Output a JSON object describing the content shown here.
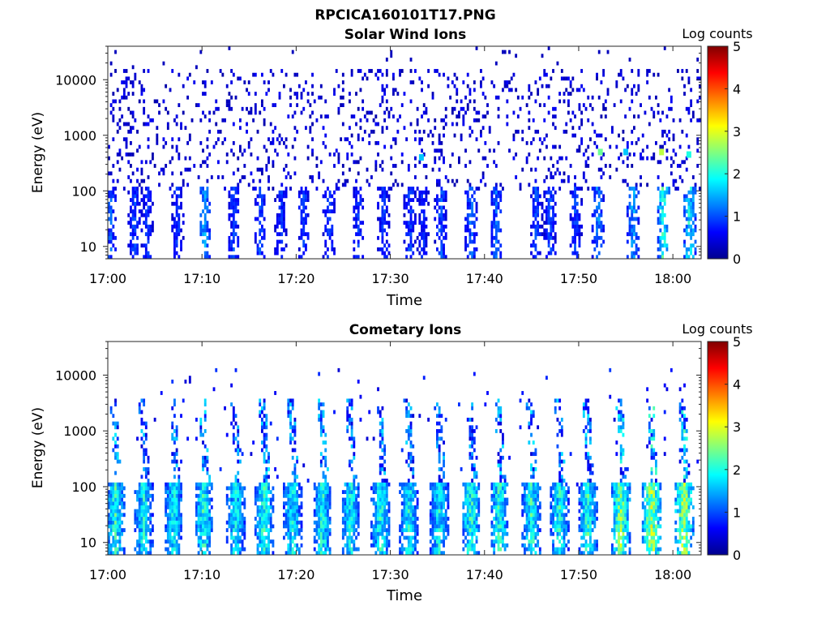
{
  "figure": {
    "title": "RPCICA160101T17.PNG"
  },
  "chart_data": [
    {
      "type": "heatmap",
      "title": "Solar Wind Ions",
      "xlabel": "Time",
      "ylabel": "Energy (eV)",
      "x_scale": "time",
      "xlim": [
        "17:00",
        "18:03"
      ],
      "xticks": [
        "17:00",
        "17:10",
        "17:20",
        "17:30",
        "17:40",
        "17:50",
        "18:00"
      ],
      "y_scale": "log",
      "ylim": [
        6,
        40000
      ],
      "yticks": [
        10,
        100,
        1000,
        10000
      ],
      "ytick_labels": [
        "10",
        "100",
        "1000",
        "10000"
      ],
      "colorbar": {
        "label": "Log counts",
        "range": [
          0,
          5
        ],
        "ticks": [
          "0",
          "1",
          "2",
          "3",
          "4",
          "5"
        ],
        "colormap": "jet"
      },
      "sweeps_min": [
        0.3,
        2.8,
        4.2,
        7.4,
        10.3,
        13.4,
        16.2,
        18.4,
        20.8,
        23.5,
        26.6,
        29.3,
        32.1,
        33.5,
        35.4,
        38.6,
        41.3,
        45.5,
        47.0,
        49.7,
        52.1,
        55.8,
        59.0,
        61.8
      ],
      "sweep_peak_log_counts": [
        1.3,
        1.2,
        1.1,
        1.1,
        1.8,
        1.2,
        1.2,
        1.1,
        1.2,
        1.2,
        1.1,
        1.2,
        1.2,
        1.0,
        1.3,
        1.4,
        1.4,
        1.2,
        1.2,
        1.2,
        1.6,
        1.8,
        2.6,
        2.4
      ],
      "background_log_counts": [
        0.2,
        0.6
      ],
      "hotspots": [
        {
          "time_min": 33.3,
          "energy_ev": 400,
          "log_counts": 1.6
        },
        {
          "time_min": 52.3,
          "energy_ev": 500,
          "log_counts": 2.4
        },
        {
          "time_min": 55.0,
          "energy_ev": 500,
          "log_counts": 1.6
        },
        {
          "time_min": 58.8,
          "energy_ev": 500,
          "log_counts": 2.8
        },
        {
          "time_min": 61.7,
          "energy_ev": 450,
          "log_counts": 2.0
        }
      ]
    },
    {
      "type": "heatmap",
      "title": "Cometary Ions",
      "xlabel": "Time",
      "ylabel": "Energy (eV)",
      "x_scale": "time",
      "xlim": [
        "17:00",
        "18:03"
      ],
      "xticks": [
        "17:00",
        "17:10",
        "17:20",
        "17:30",
        "17:40",
        "17:50",
        "18:00"
      ],
      "y_scale": "log",
      "ylim": [
        6,
        40000
      ],
      "yticks": [
        10,
        100,
        1000,
        10000
      ],
      "ytick_labels": [
        "10",
        "100",
        "1000",
        "10000"
      ],
      "colorbar": {
        "label": "Log counts",
        "range": [
          0,
          5
        ],
        "ticks": [
          "0",
          "1",
          "2",
          "3",
          "4",
          "5"
        ],
        "colormap": "jet"
      },
      "sweeps_min": [
        0.8,
        3.8,
        7.0,
        10.2,
        13.6,
        16.6,
        19.6,
        22.8,
        25.8,
        29.0,
        32.0,
        35.2,
        38.6,
        41.6,
        45.0,
        48.0,
        51.0,
        54.5,
        57.8,
        61.2
      ],
      "sweep_peak_log_counts": [
        2.6,
        2.4,
        2.4,
        2.6,
        2.4,
        2.6,
        2.4,
        2.5,
        2.4,
        2.5,
        2.4,
        2.4,
        2.7,
        2.6,
        2.6,
        2.5,
        2.6,
        3.2,
        3.5,
        3.5
      ],
      "background_log_counts": [
        0.4,
        0.9
      ],
      "hotspots": []
    }
  ]
}
